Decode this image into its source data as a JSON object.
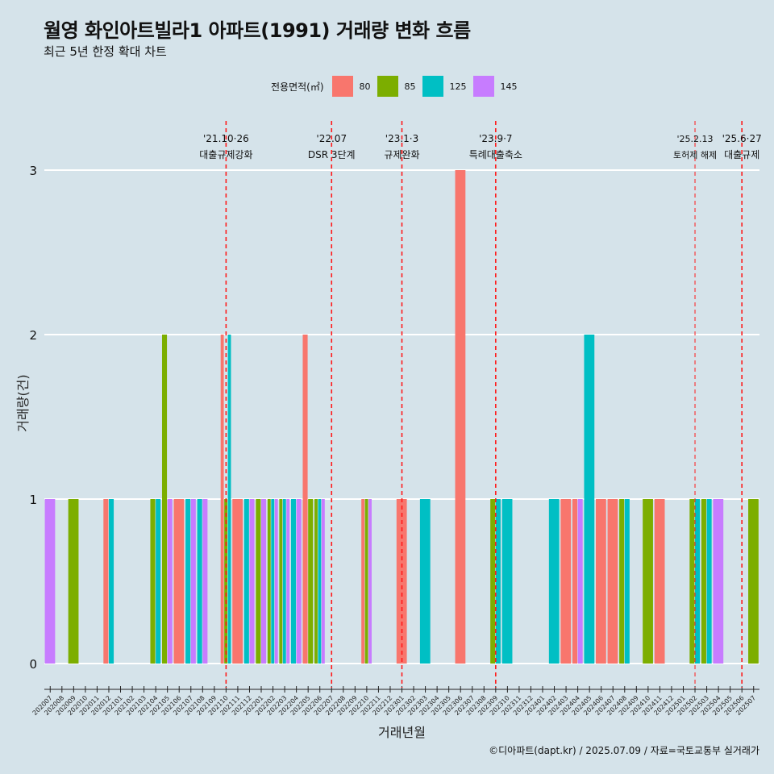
{
  "header": {
    "title": "월영 화인아트빌라1 아파트(1991) 거래량 변화 흐름",
    "subtitle": "최근 5년 한정 확대 차트"
  },
  "legend": {
    "title": "전용면적(㎡)",
    "items": [
      {
        "label": "80",
        "color": "#F8766D"
      },
      {
        "label": "85",
        "color": "#7CAE00"
      },
      {
        "label": "125",
        "color": "#00BFC4"
      },
      {
        "label": "145",
        "color": "#C77CFF"
      }
    ]
  },
  "caption": "©디아파트(dapt.kr) / 2025.07.09 / 자료=국토교통부 실거래가",
  "chart_data": {
    "type": "bar",
    "xlabel": "거래년월",
    "ylabel": "거래량(건)",
    "ylim": [
      0,
      3
    ],
    "yticks": [
      0,
      1,
      2,
      3
    ],
    "grid": true,
    "legend_position": "top",
    "categories": [
      "202007",
      "202008",
      "202009",
      "202010",
      "202011",
      "202012",
      "202101",
      "202102",
      "202103",
      "202104",
      "202105",
      "202106",
      "202107",
      "202108",
      "202109",
      "202110",
      "202111",
      "202112",
      "202201",
      "202202",
      "202203",
      "202204",
      "202205",
      "202206",
      "202207",
      "202208",
      "202209",
      "202210",
      "202211",
      "202212",
      "202301",
      "202302",
      "202303",
      "202304",
      "202305",
      "202306",
      "202307",
      "202308",
      "202309",
      "202310",
      "202311",
      "202312",
      "202401",
      "202402",
      "202403",
      "202404",
      "202405",
      "202406",
      "202407",
      "202408",
      "202409",
      "202410",
      "202411",
      "202412",
      "202501",
      "202502",
      "202503",
      "202504",
      "202505",
      "202506",
      "202507"
    ],
    "series": [
      {
        "name": "80",
        "color": "#F8766D",
        "values": [
          0,
          0,
          0,
          0,
          0,
          1,
          0,
          0,
          0,
          0,
          0,
          1,
          0,
          0,
          0,
          2,
          1,
          0,
          0,
          0,
          0,
          0,
          2,
          0,
          0,
          0,
          0,
          1,
          0,
          0,
          1,
          0,
          0,
          0,
          0,
          3,
          0,
          0,
          0,
          0,
          0,
          0,
          0,
          0,
          1,
          1,
          0,
          1,
          1,
          0,
          0,
          0,
          1,
          0,
          0,
          0,
          0,
          0,
          0,
          0,
          0
        ]
      },
      {
        "name": "85",
        "color": "#7CAE00",
        "values": [
          0,
          0,
          1,
          0,
          0,
          0,
          0,
          0,
          0,
          1,
          2,
          0,
          0,
          0,
          0,
          1,
          0,
          0,
          1,
          1,
          1,
          0,
          1,
          1,
          0,
          0,
          0,
          1,
          0,
          0,
          0,
          0,
          0,
          0,
          0,
          0,
          0,
          0,
          1,
          0,
          0,
          0,
          0,
          0,
          0,
          0,
          0,
          0,
          0,
          1,
          0,
          1,
          0,
          0,
          0,
          1,
          1,
          0,
          0,
          0,
          1
        ]
      },
      {
        "name": "125",
        "color": "#00BFC4",
        "values": [
          0,
          0,
          0,
          0,
          0,
          1,
          0,
          0,
          0,
          1,
          0,
          0,
          1,
          1,
          0,
          2,
          0,
          1,
          0,
          1,
          1,
          1,
          0,
          1,
          0,
          0,
          0,
          0,
          0,
          0,
          0,
          0,
          1,
          0,
          0,
          0,
          0,
          0,
          1,
          1,
          0,
          0,
          0,
          1,
          0,
          0,
          2,
          0,
          0,
          1,
          0,
          0,
          0,
          0,
          0,
          1,
          1,
          0,
          0,
          0,
          0
        ]
      },
      {
        "name": "145",
        "color": "#C77CFF",
        "values": [
          1,
          0,
          0,
          0,
          0,
          0,
          0,
          0,
          0,
          0,
          1,
          0,
          1,
          1,
          0,
          0,
          0,
          1,
          1,
          1,
          1,
          1,
          0,
          1,
          0,
          0,
          0,
          1,
          0,
          0,
          0,
          0,
          0,
          0,
          0,
          0,
          0,
          0,
          0,
          0,
          0,
          0,
          0,
          0,
          0,
          1,
          0,
          0,
          0,
          0,
          0,
          0,
          0,
          0,
          0,
          0,
          0,
          1,
          0,
          0,
          0
        ]
      }
    ],
    "annotations": [
      {
        "category": "202110",
        "date": "'21.10·26",
        "label": "대출규제강화"
      },
      {
        "category": "202207",
        "date": "'22.07",
        "label": "DSR 3단계"
      },
      {
        "category": "202301",
        "date": "'23.1·3",
        "label": "규제완화"
      },
      {
        "category": "202309",
        "date": "'23.9·7",
        "label": "특례대출축소"
      },
      {
        "category": "202502",
        "date": "'25.2.13",
        "label": "토허제 해제"
      },
      {
        "category": "202506",
        "date": "'25.6·27",
        "label": "대출규제"
      }
    ]
  }
}
